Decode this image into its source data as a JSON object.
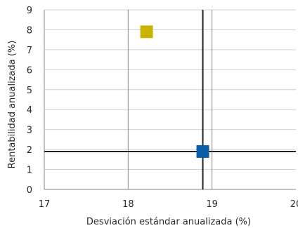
{
  "chart_data": {
    "type": "scatter",
    "title": "",
    "xlabel": "Desviación estándar anualizada (%)",
    "ylabel": "Rentabilidad anualizada (%)",
    "xlim": [
      17,
      20
    ],
    "ylim": [
      0,
      9
    ],
    "x_ticks": [
      17,
      18,
      19,
      20
    ],
    "y_ticks": [
      0,
      1,
      2,
      3,
      4,
      5,
      6,
      7,
      8,
      9
    ],
    "grid": {
      "horizontal": true,
      "vertical": true
    },
    "points": [
      {
        "x": 18.22,
        "y": 7.9,
        "color": "#c8b400",
        "marker": "square"
      },
      {
        "x": 18.89,
        "y": 1.9,
        "color": "#0a5ea8",
        "marker": "square"
      }
    ],
    "reference_lines": [
      {
        "orientation": "vertical",
        "value": 18.89,
        "color": "#222222"
      },
      {
        "orientation": "horizontal",
        "value": 1.9,
        "color": "#222222"
      }
    ]
  }
}
